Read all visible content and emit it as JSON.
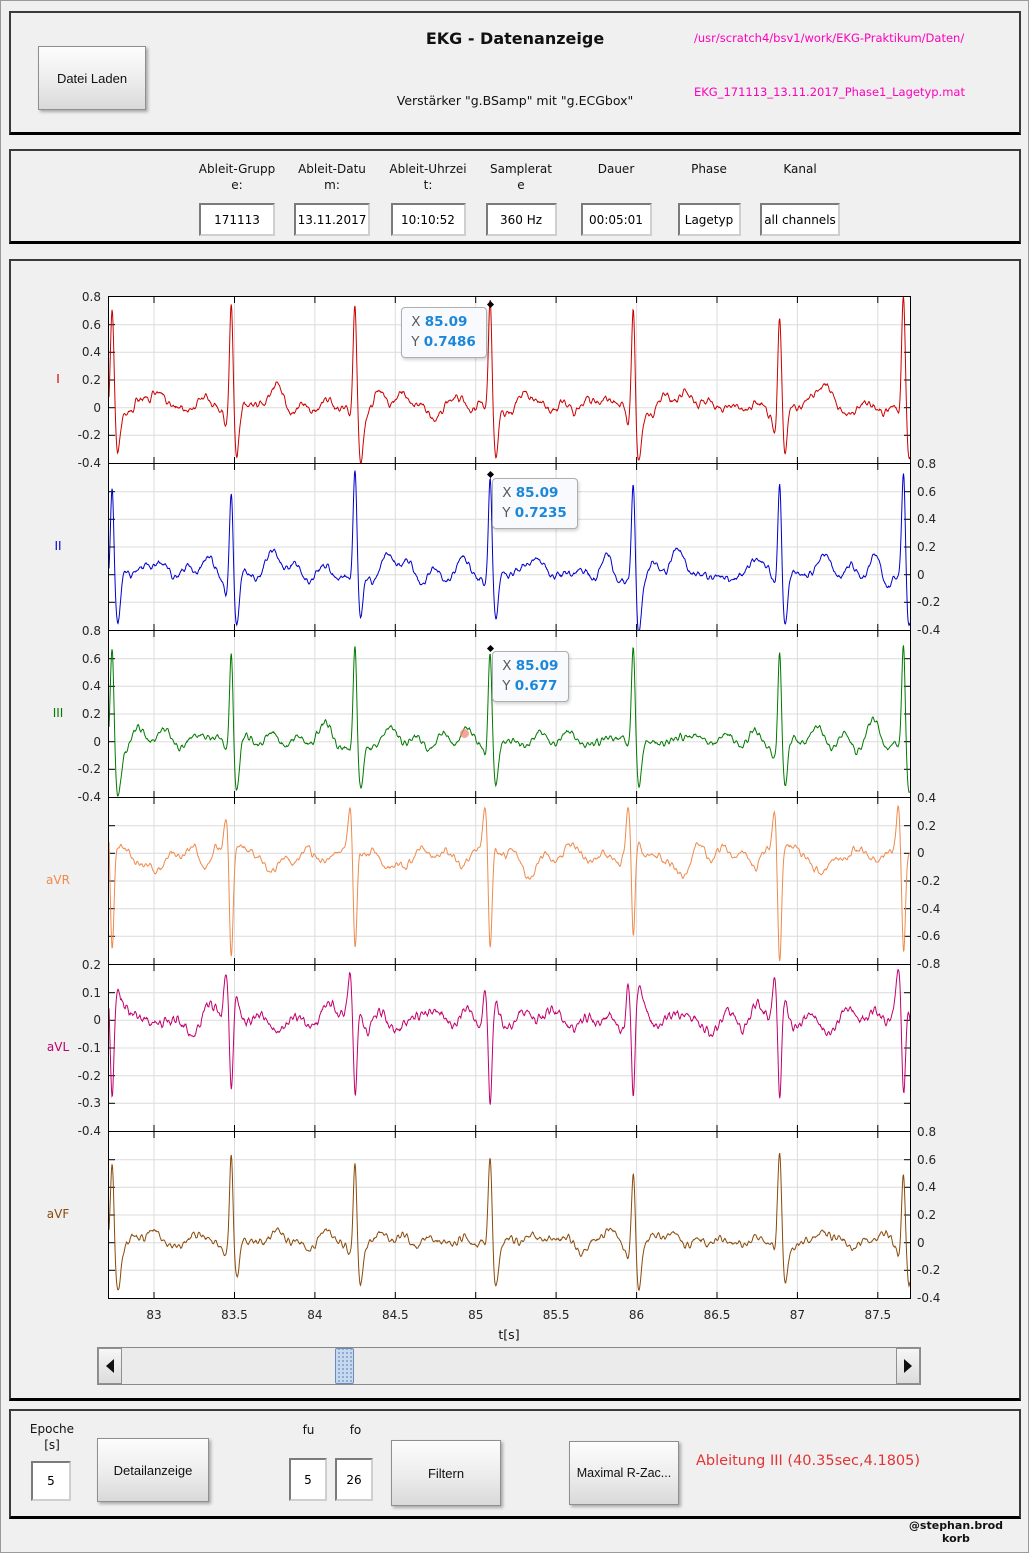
{
  "header": {
    "load_button": "Datei Laden",
    "title": "EKG - Datenanzeige",
    "subtitle": "Verstärker \"g.BSamp\" mit \"g.ECGbox\"",
    "path_dir": "/usr/scratch4/bsv1/work/EKG-Praktikum/Daten/",
    "path_file": "EKG_171113_13.11.2017_Phase1_Lagetyp.mat",
    "path_color": "#ff00bb"
  },
  "info_panel": {
    "fields": [
      {
        "label": "Ableit-Gruppe:",
        "value": "171113"
      },
      {
        "label": "Ableit-Datum:",
        "value": "13.11.2017"
      },
      {
        "label": "Ableit-Uhrzeit:",
        "value": "10:10:52"
      },
      {
        "label": "Samplerate",
        "value": "360 Hz"
      },
      {
        "label": "Dauer",
        "value": "00:05:01"
      },
      {
        "label": "Phase",
        "value": "Lagetyp"
      },
      {
        "label": "Kanal",
        "value": "all channels"
      }
    ]
  },
  "chart_data": {
    "type": "line",
    "title": "",
    "xlabel": "t[s]",
    "x_range": [
      82.72,
      87.7
    ],
    "x_ticks": [
      83,
      83.5,
      84,
      84.5,
      85,
      85.5,
      86,
      86.5,
      87,
      87.5
    ],
    "grid": true,
    "beat_times_s": [
      82.74,
      83.48,
      84.25,
      85.09,
      85.98,
      86.89,
      87.66
    ],
    "channels": [
      {
        "name": "I",
        "color": "#cc0000",
        "ylim": [
          -0.4,
          0.8
        ],
        "yticks": [
          0.8,
          0.6,
          0.4,
          0.2,
          0,
          -0.2,
          -0.4
        ],
        "tick_side": "left",
        "wave": {
          "p": 0.07,
          "q": -0.1,
          "r": 0.75,
          "s": -0.38,
          "t": 0.11,
          "noise": 1.0
        }
      },
      {
        "name": "II",
        "color": "#0000cc",
        "ylim": [
          -0.4,
          0.8
        ],
        "yticks": [
          0.8,
          0.6,
          0.4,
          0.2,
          0,
          -0.2,
          -0.4
        ],
        "tick_side": "right",
        "wave": {
          "p": 0.09,
          "q": -0.05,
          "r": 0.72,
          "s": -0.36,
          "t": 0.12,
          "noise": 1.0
        }
      },
      {
        "name": "III",
        "color": "#007a00",
        "ylim": [
          -0.4,
          0.8
        ],
        "yticks": [
          0.8,
          0.6,
          0.4,
          0.2,
          0,
          -0.2,
          -0.4
        ],
        "tick_side": "left",
        "wave": {
          "p": 0.06,
          "q": -0.06,
          "r": 0.68,
          "s": -0.33,
          "t": 0.05,
          "noise": 1.0
        }
      },
      {
        "name": "aVR",
        "color": "#f08a4c",
        "ylim": [
          -0.8,
          0.4
        ],
        "yticks": [
          0.4,
          0.2,
          0,
          -0.2,
          -0.4,
          -0.6,
          -0.8
        ],
        "tick_side": "right",
        "wave": {
          "p": -0.06,
          "q": 0.32,
          "r": -0.72,
          "s": 0.05,
          "t": -0.12,
          "noise": 0.9
        }
      },
      {
        "name": "aVL",
        "color": "#c2006e",
        "ylim": [
          -0.4,
          0.2
        ],
        "yticks": [
          0.2,
          0.1,
          0,
          -0.1,
          -0.2,
          -0.3,
          -0.4
        ],
        "tick_side": "left",
        "wave": {
          "p": 0.02,
          "q": 0.16,
          "r": -0.3,
          "s": 0.06,
          "t": 0.01,
          "noise": 0.7
        }
      },
      {
        "name": "aVF",
        "color": "#8a4a0a",
        "ylim": [
          -0.4,
          0.8
        ],
        "yticks": [
          0.8,
          0.6,
          0.4,
          0.2,
          0,
          -0.2,
          -0.4
        ],
        "tick_side": "right",
        "wave": {
          "p": 0.05,
          "q": -0.05,
          "r": 0.62,
          "s": -0.3,
          "t": 0.06,
          "noise": 0.9
        }
      }
    ],
    "datatips": [
      {
        "channel": "I",
        "x_label": "X",
        "y_label": "Y",
        "x": "85.09",
        "y": "0.7486",
        "anchor": "left"
      },
      {
        "channel": "II",
        "x_label": "X",
        "y_label": "Y",
        "x": "85.09",
        "y": "0.7235",
        "anchor": "right"
      },
      {
        "channel": "III",
        "x_label": "X",
        "y_label": "Y",
        "x": "85.09",
        "y": "0.677",
        "anchor": "right"
      }
    ],
    "datatip_value_color": "#1b87d9",
    "point_marker": {
      "channel": "III",
      "t": 84.93,
      "value": 0.06,
      "color": "#f08878"
    }
  },
  "scrollbar": {
    "thumb_pos_pct": 27.5
  },
  "controls": {
    "epoche_label_1": "Epoche",
    "epoche_label_2": "[s]",
    "epoche_value": "5",
    "detail_button": "Detailanzeige",
    "fu_label": "fu",
    "fu_value": "5",
    "fo_label": "fo",
    "fo_value": "26",
    "filter_button": "Filtern",
    "rzacke_button": "Maximal R-Zac...",
    "status_text": "Ableitung III (40.35sec,4.1805)",
    "status_color": "#e23434"
  },
  "footer": {
    "credit": "@stephan.brodkorb"
  }
}
